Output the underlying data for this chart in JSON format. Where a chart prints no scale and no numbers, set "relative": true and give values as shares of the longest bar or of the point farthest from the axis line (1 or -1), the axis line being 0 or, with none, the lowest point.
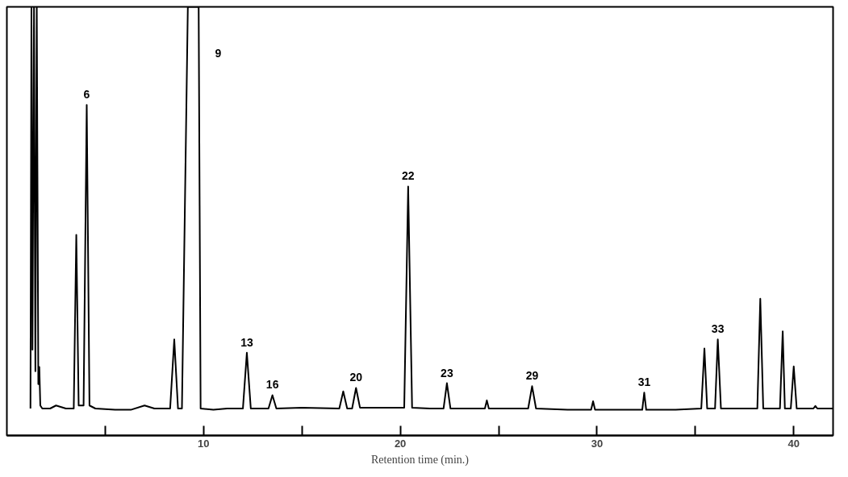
{
  "chart_data": {
    "type": "line",
    "relative": true,
    "xlabel": "Retention time (min.)",
    "xlim": [
      0,
      42
    ],
    "xticks": [
      {
        "value": 5,
        "label": null
      },
      10,
      {
        "value": 15,
        "label": null
      },
      20,
      {
        "value": 25,
        "label": null
      },
      30,
      {
        "value": 35,
        "label": null
      },
      40
    ],
    "grid": false,
    "marker": "none",
    "line_style": "solid",
    "series": [
      {
        "color": "#000000",
        "x": [
          1.2,
          1.25,
          1.3,
          1.38,
          1.45,
          1.52,
          1.6,
          1.65,
          1.7,
          1.8,
          2.2,
          2.5,
          3.0,
          3.4,
          3.53,
          3.65,
          3.9,
          4.06,
          4.2,
          4.5,
          5.5,
          6.3,
          7.0,
          7.5,
          8.3,
          8.51,
          8.7,
          8.9,
          9.2,
          9.75,
          9.85,
          10.5,
          11.2,
          12.0,
          12.2,
          12.4,
          13.3,
          13.5,
          13.7,
          15.0,
          16.9,
          17.1,
          17.3,
          17.55,
          17.75,
          17.95,
          19.0,
          20.2,
          20.4,
          20.6,
          21.5,
          22.2,
          22.37,
          22.55,
          23.5,
          24.3,
          24.4,
          24.5,
          26.5,
          26.7,
          26.9,
          28.5,
          29.7,
          29.8,
          29.9,
          31.5,
          32.3,
          32.4,
          32.5,
          34.0,
          35.3,
          35.46,
          35.6,
          36.0,
          36.14,
          36.3,
          37.5,
          38.15,
          38.3,
          38.45,
          39.3,
          39.44,
          39.55,
          39.85,
          40.0,
          40.15,
          41.0,
          41.1,
          41.2,
          42.0
        ],
        "values": [
          0.063,
          1.0,
          0.2,
          1.0,
          0.15,
          1.0,
          0.12,
          0.16,
          0.07,
          0.063,
          0.063,
          0.07,
          0.063,
          0.063,
          0.468,
          0.07,
          0.07,
          0.771,
          0.07,
          0.063,
          0.06,
          0.06,
          0.07,
          0.063,
          0.063,
          0.224,
          0.063,
          0.063,
          1.0,
          1.0,
          0.063,
          0.06,
          0.063,
          0.063,
          0.193,
          0.063,
          0.063,
          0.094,
          0.063,
          0.065,
          0.063,
          0.103,
          0.063,
          0.063,
          0.111,
          0.065,
          0.065,
          0.065,
          0.581,
          0.065,
          0.063,
          0.063,
          0.122,
          0.063,
          0.063,
          0.063,
          0.082,
          0.063,
          0.063,
          0.115,
          0.063,
          0.06,
          0.06,
          0.08,
          0.06,
          0.06,
          0.06,
          0.1,
          0.06,
          0.06,
          0.063,
          0.203,
          0.063,
          0.063,
          0.224,
          0.063,
          0.063,
          0.063,
          0.319,
          0.063,
          0.063,
          0.243,
          0.063,
          0.063,
          0.161,
          0.063,
          0.063,
          0.069,
          0.063,
          0.063
        ]
      }
    ],
    "annotations": [
      {
        "text": "6",
        "x": 4.06,
        "y": 0.771
      },
      "9",
      {
        "text": "13",
        "x": 12.2,
        "y": 0.193
      },
      {
        "text": "16",
        "x": 13.5,
        "y": 0.094
      },
      {
        "text": "20",
        "x": 17.75,
        "y": 0.111
      },
      {
        "text": "22",
        "x": 20.4,
        "y": 0.581
      },
      {
        "text": "23",
        "x": 22.37,
        "y": 0.122
      },
      {
        "text": "29",
        "x": 26.7,
        "y": 0.115
      },
      {
        "text": "31",
        "x": 32.4,
        "y": 0.1
      },
      {
        "text": "33",
        "x": 36.14,
        "y": 0.224
      }
    ]
  }
}
